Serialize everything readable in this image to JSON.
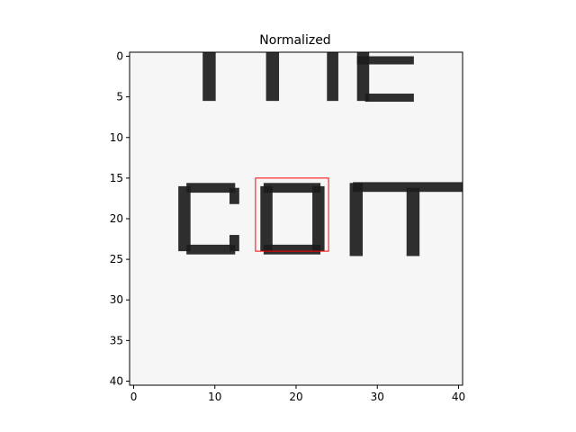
{
  "chart_data": {
    "type": "heatmap",
    "title": "Normalized",
    "xlabel": "",
    "ylabel": "",
    "xlim": [
      -0.5,
      40.5
    ],
    "ylim": [
      40.5,
      -0.5
    ],
    "x_ticks": [
      0,
      10,
      20,
      30,
      40
    ],
    "y_ticks": [
      0,
      5,
      10,
      15,
      20,
      25,
      30,
      35,
      40
    ],
    "grid": false,
    "colormap": "gray",
    "background_color": "#f6f6f6",
    "ink_color": "#1c1c1c",
    "image_grid": {
      "width": 41,
      "height": 41
    },
    "image_content": "enlarged grayscale text crop showing the letters 'co' and part of 'm' below partial letters from the line above",
    "highlight_box": {
      "color": "#ff0000",
      "x0": 15.0,
      "y0": 15.0,
      "x1": 24.0,
      "y1": 24.0
    }
  }
}
